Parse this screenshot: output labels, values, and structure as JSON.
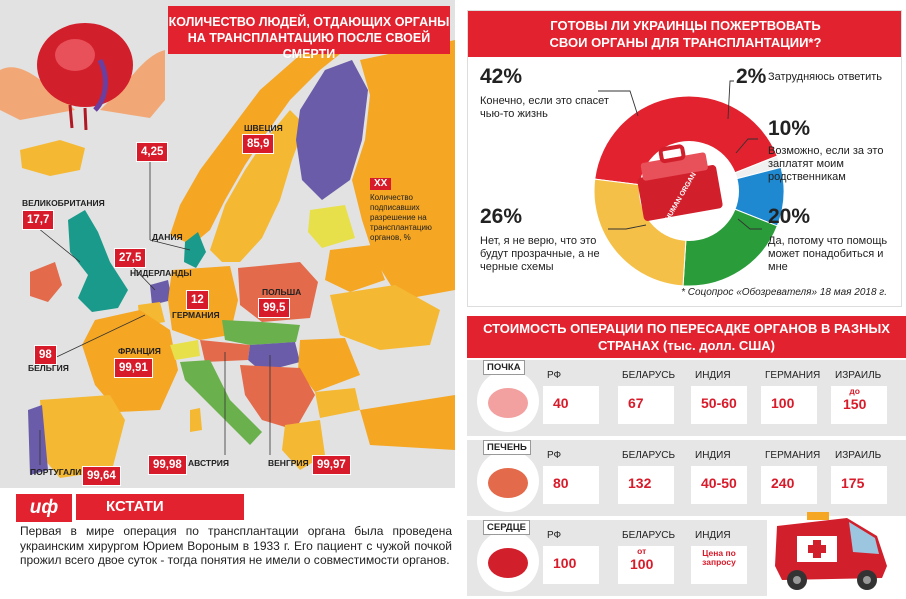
{
  "map": {
    "title": "КОЛИЧЕСТВО ЛЮДЕЙ, ОТДАЮЩИХ ОРГАНЫ\nНА ТРАНСПЛАНТАЦИЮ ПОСЛЕ СВОЕЙ СМЕРТИ",
    "legend_code": "XX",
    "legend_text": "Количество подписавших разрешение на трансплантацию органов, %"
  },
  "chart_data": [
    {
      "type": "map-values",
      "title": "КОЛИЧЕСТВО ЛЮДЕЙ, ОТДАЮЩИХ ОРГАНЫ НА ТРАНСПЛАНТАЦИЮ ПОСЛЕ СВОЕЙ СМЕРТИ",
      "unit": "%",
      "points": [
        {
          "country": "ВЕЛИКОБРИТАНИЯ",
          "value": "17,7"
        },
        {
          "country": "ДАНИЯ",
          "value": "4,25"
        },
        {
          "country": "ШВЕЦИЯ",
          "value": "85,9"
        },
        {
          "country": "НИДЕРЛАНДЫ",
          "value": "27,5"
        },
        {
          "country": "ГЕРМАНИЯ",
          "value": "12"
        },
        {
          "country": "ПОЛЬША",
          "value": "99,5"
        },
        {
          "country": "БЕЛЬГИЯ",
          "value": "98"
        },
        {
          "country": "ФРАНЦИЯ",
          "value": "99,91"
        },
        {
          "country": "ПОРТУГАЛИЯ",
          "value": "99,64"
        },
        {
          "country": "АВСТРИЯ",
          "value": "99,98"
        },
        {
          "country": "ВЕНГРИЯ",
          "value": "99,97"
        }
      ]
    },
    {
      "type": "pie",
      "title": "ГОТОВЫ ЛИ УКРАИНЦЫ ПОЖЕРТВОВАТЬ\nСВОИ ОРГАНЫ ДЛЯ ТРАНСПЛАНТАЦИИ*?",
      "source": "* Соцопрос «Обозревателя» 18 мая 2018 г.",
      "slices": [
        {
          "label": "Конечно, если это спасет чью-то жизнь",
          "pct_label": "42%",
          "value": 42,
          "color": "#e2222e"
        },
        {
          "label": "Затрудняюсь ответить",
          "pct_label": "2%",
          "value": 2,
          "color": "#f0f0f0"
        },
        {
          "label": "Возможно, если за это заплатят моим родственникам",
          "pct_label": "10%",
          "value": 10,
          "color": "#1e88d0"
        },
        {
          "label": "Да, потому что помощь может понадобиться и мне",
          "pct_label": "20%",
          "value": 20,
          "color": "#2a9d3a"
        },
        {
          "label": "Нет, я не верю, что это будут прозрачные, а не черные схемы",
          "pct_label": "26%",
          "value": 26,
          "color": "#f5c048"
        }
      ]
    },
    {
      "type": "table",
      "title": "СТОИМОСТЬ ОПЕРАЦИИ ПО ПЕРЕСАДКЕ ОРГАНОВ В РАЗНЫХ СТРАНАХ (тыс. долл. США)",
      "rows": [
        {
          "organ": "ПОЧКА",
          "cells": [
            {
              "country": "РФ",
              "value": "40"
            },
            {
              "country": "БЕЛАРУСЬ",
              "value": "67"
            },
            {
              "country": "ИНДИЯ",
              "value": "50-60"
            },
            {
              "country": "ГЕРМАНИЯ",
              "value": "100"
            },
            {
              "country": "ИЗРАИЛЬ",
              "prefix": "до",
              "value": "150"
            }
          ]
        },
        {
          "organ": "ПЕЧЕНЬ",
          "cells": [
            {
              "country": "РФ",
              "value": "80"
            },
            {
              "country": "БЕЛАРУСЬ",
              "value": "132"
            },
            {
              "country": "ИНДИЯ",
              "value": "40-50"
            },
            {
              "country": "ГЕРМАНИЯ",
              "value": "240"
            },
            {
              "country": "ИЗРАИЛЬ",
              "value": "175"
            }
          ]
        },
        {
          "organ": "СЕРДЦЕ",
          "cells": [
            {
              "country": "РФ",
              "value": "100"
            },
            {
              "country": "БЕЛАРУСЬ",
              "prefix": "от",
              "value": "100"
            },
            {
              "country": "ИНДИЯ",
              "value": "Цена по запросу"
            }
          ]
        }
      ]
    }
  ],
  "kstati": {
    "logo": "иф",
    "title": "КСТАТИ",
    "text": "Первая в мире операция по трансплантации органа была проведена украинским хирургом Юрием Вороным в 1933 г. Его пациент с чужой почкой прожил всего двое суток - тогда понятия не имели о совместимости органов."
  },
  "pie_panel": {
    "box_text": "HUMAN ORGAN"
  },
  "cost": {
    "title": "СТОИМОСТЬ ОПЕРАЦИИ ПО ПЕРЕСАДКЕ ОРГАНОВ В РАЗНЫХ\nСТРАНАХ (тыс. долл. США)"
  },
  "colors": {
    "red": "#e2222e",
    "orange": "#f5a623",
    "teal": "#1a9a8a",
    "purple": "#6a5ca8",
    "green": "#6ab04c",
    "yellow": "#e8e04a"
  }
}
